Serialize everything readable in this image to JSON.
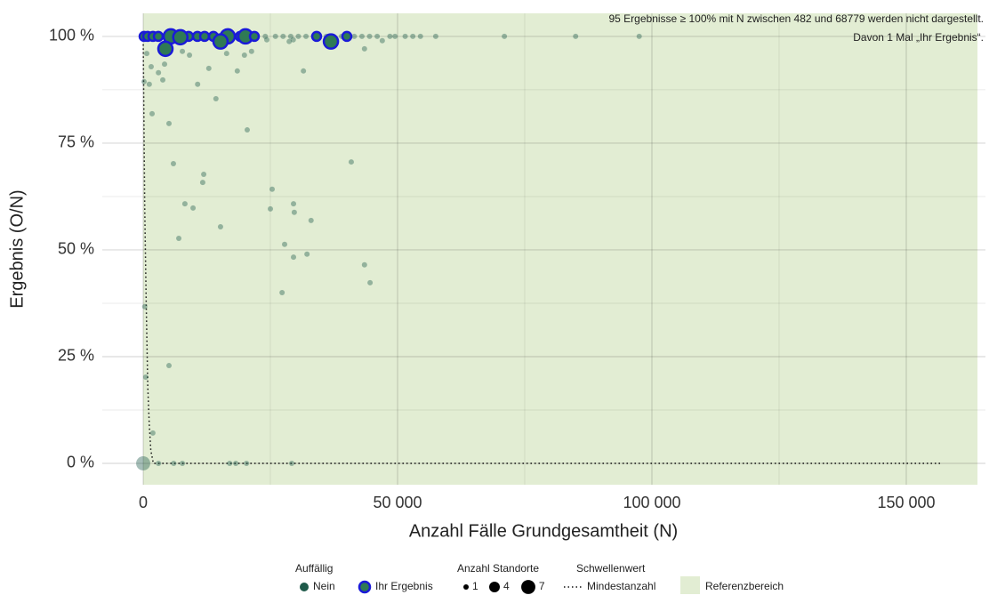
{
  "chart_data": {
    "type": "scatter",
    "xlabel": "Anzahl Fälle Grundgesamtheit (N)",
    "ylabel": "Ergebnis (O/N)",
    "annotations": [
      "95 Ergebnisse ≥ 100% mit N zwischen 482 und 68779 werden nicht dargestellt.",
      "Davon 1 Mal „Ihr Ergebnis“."
    ],
    "xlim": [
      -8042,
      165560
    ],
    "ylim": [
      -5,
      105.4
    ],
    "xticks": [
      0,
      {
        "value": 50000,
        "label": "50 000"
      },
      {
        "value": 100000,
        "label": "100 000"
      },
      {
        "value": 150000,
        "label": "150 000"
      }
    ],
    "xminor": [
      25000,
      75000,
      125000
    ],
    "yticks": [
      {
        "value": 0,
        "label": "0 %"
      },
      {
        "value": 25,
        "label": "25 %"
      },
      {
        "value": 50,
        "label": "50 %"
      },
      {
        "value": 75,
        "label": "75 %"
      },
      {
        "value": 100,
        "label": "100 %"
      }
    ],
    "yminor": [
      12.5,
      37.5,
      62.5,
      87.5
    ],
    "grid": true,
    "reference_x": [
      0,
      164000
    ],
    "reference_color": "#e2edd3",
    "legend": {
      "groups": [
        {
          "title": "Auffällig",
          "items": [
            "Nein",
            "Ihr Ergebnis"
          ]
        },
        {
          "title": "Anzahl Standorte",
          "items": [
            1,
            4,
            7
          ]
        },
        {
          "title": "Schwellenwert",
          "items": [
            "Mindestanzahl"
          ]
        }
      ],
      "reference": "Referenzbereich"
    },
    "threshold": {
      "name": "Mindestanzahl",
      "x": [
        0,
        300,
        600,
        900,
        1200,
        1500,
        2000,
        157000
      ],
      "values": [
        100,
        60,
        37,
        18,
        9,
        3,
        0,
        0
      ]
    },
    "series": [
      {
        "name": "Nein",
        "color": "#1f5a4a",
        "x": [
          0,
          500,
          300,
          1900,
          5070,
          3000,
          6000,
          7700,
          17000,
          18200,
          20300,
          29200,
          1750,
          5070,
          5940,
          11900,
          11700,
          8200,
          9800,
          7000,
          15200,
          25350,
          25000,
          29550,
          29700,
          33000,
          27800,
          29550,
          32200,
          27300,
          43500,
          44600,
          40900,
          20450,
          14300,
          10700,
          12900,
          18500,
          31500,
          1200,
          3850,
          700,
          1570,
          3000,
          4200,
          7700,
          9100,
          16400,
          21300,
          19900,
          28700,
          29500,
          43500,
          47000,
          175,
          24300,
          24000,
          26000,
          27500,
          29000,
          30500,
          32000,
          33500,
          36000,
          39000,
          41500,
          43000,
          44500,
          46000,
          48500,
          49500,
          51500,
          53000,
          54500,
          57500,
          71000,
          85000,
          97500
        ],
        "values": [
          0,
          20.2,
          36.7,
          7.1,
          22.9,
          0,
          0,
          0,
          0,
          0,
          0,
          0,
          81.9,
          79.6,
          70.2,
          67.7,
          65.8,
          60.8,
          59.8,
          52.7,
          55.4,
          64.2,
          59.6,
          60.8,
          58.8,
          56.9,
          51.3,
          48.3,
          49.0,
          40.0,
          46.5,
          42.3,
          70.6,
          78.1,
          85.4,
          88.8,
          92.5,
          91.9,
          91.9,
          88.8,
          89.8,
          96,
          92.9,
          91.5,
          93.5,
          96.5,
          95.6,
          96,
          96.5,
          95.6,
          98.8,
          99.2,
          97.1,
          99,
          89.4,
          99.2,
          100,
          100,
          100,
          100,
          100,
          100,
          100,
          100,
          100,
          100,
          100,
          100,
          100,
          100,
          100,
          100,
          100,
          100,
          100,
          100,
          100,
          100
        ],
        "sizes": [
          7,
          1,
          1,
          1,
          1,
          1,
          1,
          1,
          1,
          1,
          1,
          1,
          1,
          1,
          1,
          1,
          1,
          1,
          1,
          1,
          1,
          1,
          1,
          1,
          1,
          1,
          1,
          1,
          1,
          1,
          1,
          1,
          1,
          1,
          1,
          1,
          1,
          1,
          1,
          1,
          1,
          1,
          1,
          1,
          1,
          1,
          1,
          1,
          1,
          1,
          1,
          1,
          1,
          1,
          1,
          1,
          1,
          1,
          1,
          1,
          1,
          1,
          1,
          1,
          1,
          1,
          1,
          1,
          1,
          1,
          1,
          1,
          1,
          1,
          1,
          1,
          1,
          1
        ]
      },
      {
        "name": "Ihr Ergebnis",
        "color": "#2f7a55",
        "edgecolor": "#1a1ad8",
        "x": [
          175,
          875,
          1920,
          2970,
          5420,
          6820,
          8920,
          10660,
          12060,
          13810,
          16610,
          19060,
          20100,
          21850,
          34090,
          40030,
          4370,
          15200,
          36900,
          7300
        ],
        "values": [
          100,
          100,
          100,
          100,
          100,
          100,
          100,
          100,
          100,
          100,
          100,
          100,
          100,
          100,
          100,
          100,
          97.1,
          98.8,
          98.8,
          99.8
        ],
        "sizes": [
          1,
          1,
          1,
          1,
          4,
          1,
          1,
          1,
          1,
          1,
          4,
          1,
          4,
          1,
          1,
          1,
          4,
          4,
          4,
          4
        ]
      }
    ]
  }
}
